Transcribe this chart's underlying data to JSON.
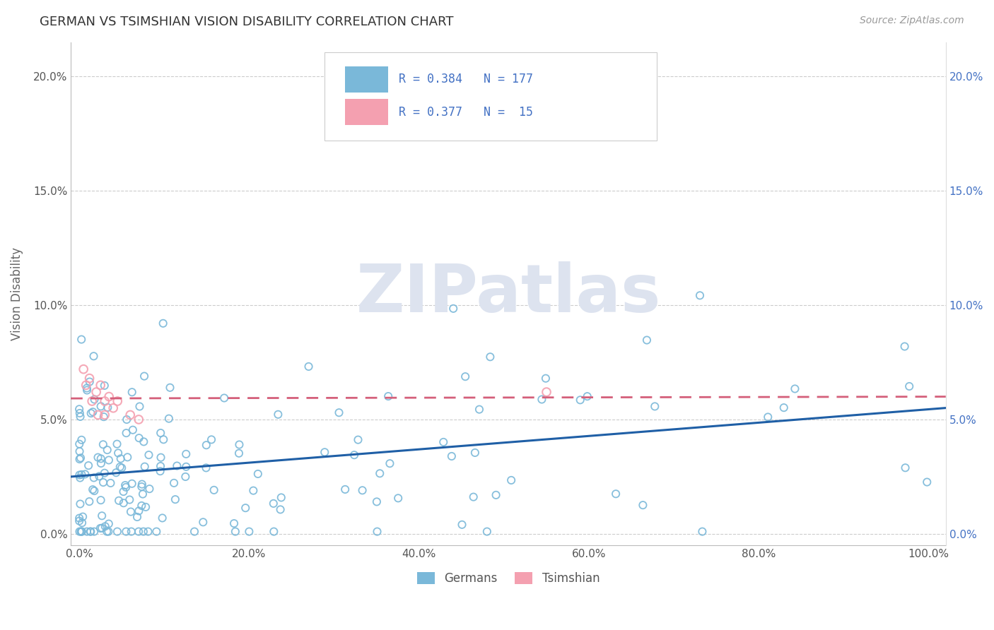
{
  "title": "GERMAN VS TSIMSHIAN VISION DISABILITY CORRELATION CHART",
  "source_text": "Source: ZipAtlas.com",
  "ylabel": "Vision Disability",
  "watermark": "ZIPatlas",
  "xlim": [
    -0.01,
    1.02
  ],
  "ylim": [
    -0.005,
    0.215
  ],
  "x_ticks": [
    0.0,
    0.2,
    0.4,
    0.6,
    0.8,
    1.0
  ],
  "x_tick_labels": [
    "0.0%",
    "20.0%",
    "40.0%",
    "60.0%",
    "80.0%",
    "100.0%"
  ],
  "y_ticks": [
    0.0,
    0.05,
    0.1,
    0.15,
    0.2
  ],
  "y_tick_labels": [
    "0.0%",
    "5.0%",
    "10.0%",
    "15.0%",
    "20.0%"
  ],
  "german_color": "#7ab8d9",
  "tsim_color": "#f4a0b0",
  "german_line_color": "#1f5fa6",
  "tsim_line_color": "#d45f7a",
  "tsim_line_dash": "--",
  "R_german": 0.384,
  "N_german": 177,
  "R_tsim": 0.377,
  "N_tsim": 15,
  "background_color": "#ffffff",
  "grid_color": "#cccccc",
  "title_color": "#333333",
  "title_fontsize": 13,
  "axis_label_color": "#666666",
  "right_axis_color": "#4472c4",
  "watermark_color": "#dde3ef",
  "legend_text_color": "#4472c4"
}
